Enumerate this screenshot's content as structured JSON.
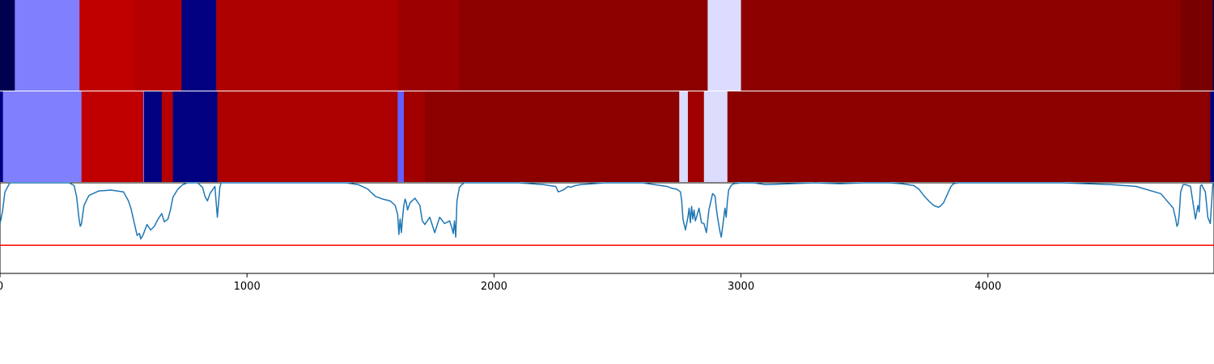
{
  "chart_data": [
    {
      "type": "heatmap",
      "xlim": [
        0,
        4915
      ],
      "segments": [
        {
          "start": 0,
          "end": 60,
          "color": "#000050"
        },
        {
          "start": 60,
          "end": 322,
          "color": "#8080ff"
        },
        {
          "start": 322,
          "end": 545,
          "color": "#c00000"
        },
        {
          "start": 545,
          "end": 735,
          "color": "#b40000"
        },
        {
          "start": 735,
          "end": 875,
          "color": "#000080"
        },
        {
          "start": 875,
          "end": 1610,
          "color": "#ad0000"
        },
        {
          "start": 1610,
          "end": 1860,
          "color": "#9d0000"
        },
        {
          "start": 1860,
          "end": 2865,
          "color": "#8c0000"
        },
        {
          "start": 2865,
          "end": 3000,
          "color": "#dcdcff"
        },
        {
          "start": 3000,
          "end": 4780,
          "color": "#8c0000"
        },
        {
          "start": 4780,
          "end": 4910,
          "color": "#780000"
        },
        {
          "start": 4910,
          "end": 4915,
          "color": "#000050"
        }
      ]
    },
    {
      "type": "heatmap",
      "xlim": [
        0,
        4915
      ],
      "segments": [
        {
          "start": 0,
          "end": 12,
          "color": "#000080"
        },
        {
          "start": 12,
          "end": 330,
          "color": "#8080ff"
        },
        {
          "start": 330,
          "end": 580,
          "color": "#c00000"
        },
        {
          "start": 580,
          "end": 583,
          "color": "#8080ff"
        },
        {
          "start": 583,
          "end": 655,
          "color": "#000080"
        },
        {
          "start": 655,
          "end": 700,
          "color": "#b40000"
        },
        {
          "start": 700,
          "end": 880,
          "color": "#000080"
        },
        {
          "start": 880,
          "end": 1610,
          "color": "#ad0000"
        },
        {
          "start": 1610,
          "end": 1635,
          "color": "#6060ff"
        },
        {
          "start": 1635,
          "end": 1720,
          "color": "#a20000"
        },
        {
          "start": 1720,
          "end": 1840,
          "color": "#8c0000"
        },
        {
          "start": 1840,
          "end": 2750,
          "color": "#8c0000"
        },
        {
          "start": 2750,
          "end": 2785,
          "color": "#dcdcff"
        },
        {
          "start": 2785,
          "end": 2850,
          "color": "#a00000"
        },
        {
          "start": 2850,
          "end": 2945,
          "color": "#dcdcff"
        },
        {
          "start": 2945,
          "end": 4900,
          "color": "#8c0000"
        },
        {
          "start": 4900,
          "end": 4915,
          "color": "#000080"
        }
      ]
    },
    {
      "type": "line",
      "xlim": [
        0,
        4915
      ],
      "ylim": [
        0,
        1
      ],
      "threshold": 0.31,
      "x_ticks": [
        0,
        1000,
        2000,
        3000,
        4000
      ],
      "line_color": "#1f77b4",
      "threshold_color": "#ff0000",
      "x": [
        0,
        10,
        20,
        40,
        60,
        100,
        200,
        280,
        300,
        310,
        320,
        325,
        330,
        340,
        360,
        400,
        450,
        500,
        520,
        530,
        540,
        555,
        565,
        570,
        580,
        595,
        610,
        625,
        640,
        655,
        665,
        680,
        690,
        700,
        720,
        740,
        760,
        800,
        820,
        830,
        840,
        850,
        870,
        880,
        890,
        895,
        900,
        950,
        1000,
        1100,
        1200,
        1300,
        1400,
        1450,
        1490,
        1500,
        1520,
        1550,
        1580,
        1600,
        1610,
        1615,
        1620,
        1625,
        1630,
        1635,
        1640,
        1645,
        1650,
        1660,
        1680,
        1700,
        1705,
        1710,
        1720,
        1740,
        1760,
        1780,
        1800,
        1820,
        1830,
        1835,
        1840,
        1845,
        1850,
        1860,
        1870,
        1880,
        1890,
        1900,
        1950,
        2000,
        2050,
        2100,
        2150,
        2200,
        2250,
        2260,
        2280,
        2300,
        2310,
        2320,
        2330,
        2350,
        2400,
        2450,
        2500,
        2600,
        2650,
        2700,
        2720,
        2740,
        2755,
        2760,
        2765,
        2775,
        2785,
        2790,
        2795,
        2800,
        2805,
        2810,
        2815,
        2820,
        2830,
        2840,
        2850,
        2860,
        2870,
        2880,
        2885,
        2890,
        2895,
        2900,
        2905,
        2910,
        2915,
        2920,
        2925,
        2935,
        2940,
        2945,
        2950,
        2960,
        2970,
        3000,
        3050,
        3100,
        3200,
        3300,
        3400,
        3500,
        3600,
        3650,
        3700,
        3720,
        3740,
        3760,
        3780,
        3800,
        3810,
        3820,
        3830,
        3840,
        3850,
        3860,
        3880,
        3900,
        3950,
        4000,
        4100,
        4200,
        4300,
        4400,
        4500,
        4600,
        4700,
        4750,
        4760,
        4765,
        4770,
        4775,
        4780,
        4790,
        4800,
        4820,
        4840,
        4850,
        4855,
        4860,
        4865,
        4870,
        4880,
        4890,
        4900,
        4910,
        4915
      ],
      "y": [
        0.55,
        0.68,
        0.9,
        1.0,
        1.0,
        1.0,
        1.0,
        1.0,
        0.97,
        0.85,
        0.6,
        0.52,
        0.55,
        0.75,
        0.86,
        0.91,
        0.92,
        0.9,
        0.8,
        0.72,
        0.6,
        0.42,
        0.44,
        0.38,
        0.43,
        0.54,
        0.48,
        0.52,
        0.6,
        0.66,
        0.57,
        0.6,
        0.7,
        0.84,
        0.93,
        0.98,
        1.0,
        1.0,
        0.95,
        0.85,
        0.8,
        0.88,
        0.96,
        0.62,
        0.95,
        1.0,
        1.0,
        1.0,
        1.0,
        1.0,
        1.0,
        1.0,
        1.0,
        0.98,
        0.93,
        0.9,
        0.85,
        0.82,
        0.8,
        0.75,
        0.65,
        0.43,
        0.6,
        0.45,
        0.62,
        0.75,
        0.82,
        0.78,
        0.7,
        0.78,
        0.83,
        0.75,
        0.66,
        0.58,
        0.54,
        0.62,
        0.45,
        0.62,
        0.55,
        0.58,
        0.5,
        0.44,
        0.58,
        0.4,
        0.8,
        0.95,
        0.98,
        1.0,
        1.0,
        1.0,
        1.0,
        1.0,
        1.0,
        1.0,
        0.99,
        0.98,
        0.96,
        0.9,
        0.92,
        0.96,
        0.95,
        0.96,
        0.97,
        0.98,
        0.99,
        1.0,
        1.0,
        1.0,
        0.98,
        0.96,
        0.94,
        0.93,
        0.9,
        0.8,
        0.6,
        0.48,
        0.62,
        0.72,
        0.56,
        0.74,
        0.6,
        0.7,
        0.58,
        0.62,
        0.72,
        0.56,
        0.55,
        0.45,
        0.7,
        0.82,
        0.88,
        0.87,
        0.85,
        0.72,
        0.62,
        0.54,
        0.46,
        0.4,
        0.5,
        0.72,
        0.62,
        0.8,
        0.92,
        0.97,
        0.99,
        1.0,
        1.0,
        0.98,
        0.99,
        1.0,
        0.99,
        1.0,
        1.0,
        0.99,
        0.97,
        0.93,
        0.86,
        0.8,
        0.75,
        0.73,
        0.75,
        0.78,
        0.84,
        0.9,
        0.96,
        0.99,
        1.0,
        1.0,
        1.0,
        1.0,
        1.0,
        1.0,
        1.0,
        0.99,
        0.98,
        0.96,
        0.88,
        0.72,
        0.6,
        0.52,
        0.55,
        0.68,
        0.9,
        0.98,
        0.98,
        0.96,
        0.6,
        0.75,
        0.68,
        0.96,
        0.98,
        0.95,
        0.9,
        0.62,
        0.55,
        0.98,
        1.0
      ]
    }
  ]
}
